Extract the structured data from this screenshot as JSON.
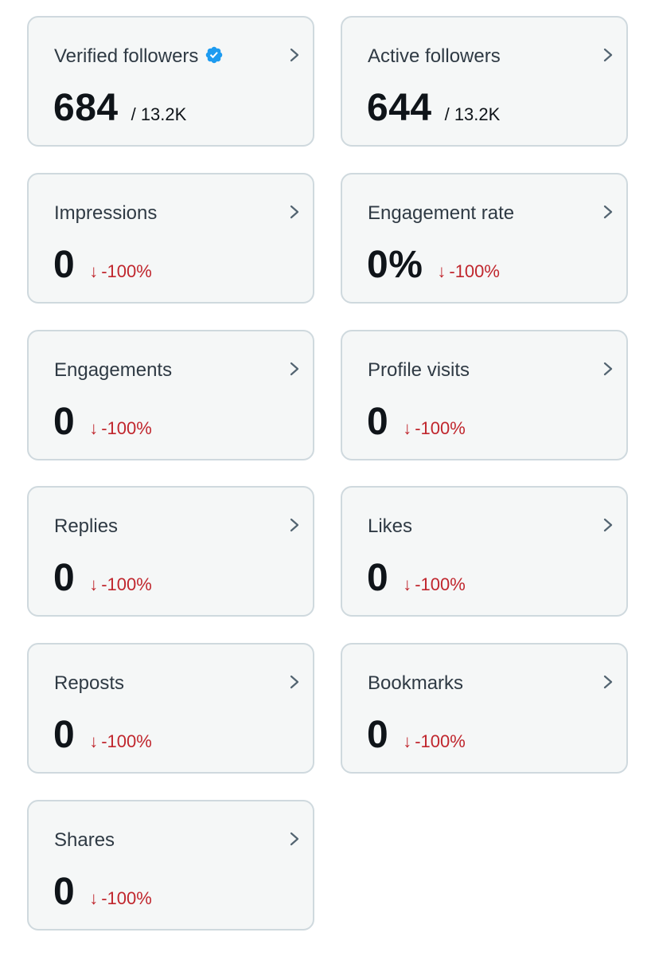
{
  "colors": {
    "card_background": "#f5f7f7",
    "card_border": "#cfd9de",
    "label_text": "#2f3a44",
    "value_text": "#0f1419",
    "negative_change": "#c0262d",
    "verified_badge": "#1d9bf0"
  },
  "metrics": {
    "verified_followers": {
      "label": "Verified followers",
      "value": "684",
      "total": "/ 13.2K",
      "icon": "verified-badge-icon"
    },
    "active_followers": {
      "label": "Active followers",
      "value": "644",
      "total": "/ 13.2K"
    },
    "impressions": {
      "label": "Impressions",
      "value": "0",
      "change": "-100%",
      "arrow": "↓"
    },
    "engagement_rate": {
      "label": "Engagement rate",
      "value": "0%",
      "change": "-100%",
      "arrow": "↓"
    },
    "engagements": {
      "label": "Engagements",
      "value": "0",
      "change": "-100%",
      "arrow": "↓"
    },
    "profile_visits": {
      "label": "Profile visits",
      "value": "0",
      "change": "-100%",
      "arrow": "↓"
    },
    "replies": {
      "label": "Replies",
      "value": "0",
      "change": "-100%",
      "arrow": "↓"
    },
    "likes": {
      "label": "Likes",
      "value": "0",
      "change": "-100%",
      "arrow": "↓"
    },
    "reposts": {
      "label": "Reposts",
      "value": "0",
      "change": "-100%",
      "arrow": "↓"
    },
    "bookmarks": {
      "label": "Bookmarks",
      "value": "0",
      "change": "-100%",
      "arrow": "↓"
    },
    "shares": {
      "label": "Shares",
      "value": "0",
      "change": "-100%",
      "arrow": "↓"
    }
  }
}
